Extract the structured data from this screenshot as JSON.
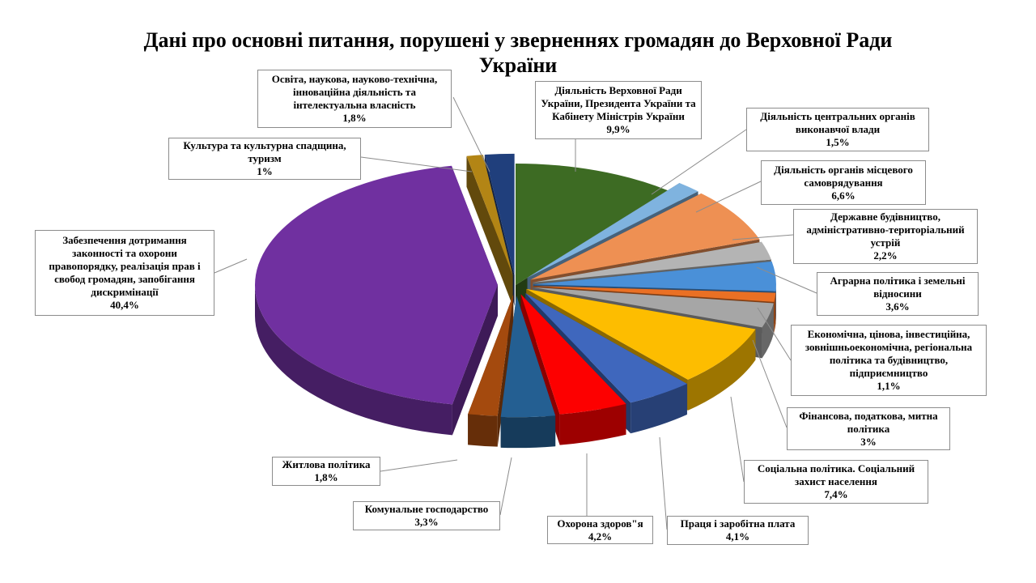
{
  "title": "Дані про основні питання, порушені у зверненнях громадян до Верховної Ради України",
  "chart_data": {
    "type": "pie",
    "style": "3d-exploded",
    "title": "Дані про основні питання, порушені у зверненнях громадян до Верховної Ради України",
    "unit": "%",
    "slices": [
      {
        "label": "Діяльність Верховної Ради України, Президента України та Кабінету Міністрів України",
        "value": 9.9,
        "display": "9,9%",
        "color": "#3d6b23"
      },
      {
        "label": "Діяльність центральних органів виконавчої влади",
        "value": 1.5,
        "display": "1,5%",
        "color": "#7fb3df"
      },
      {
        "label": "Діяльність органів місцевого самоврядування",
        "value": 6.6,
        "display": "6,6%",
        "color": "#ee9053"
      },
      {
        "label": "Державне будівництво, адміністративно-територіальний устрій",
        "value": 2.2,
        "display": "2,2%",
        "color": "#b4b4b4"
      },
      {
        "label": "Аграрна політика і земельні відносини",
        "value": 3.6,
        "display": "3,6%",
        "color": "#4a90d8"
      },
      {
        "label": "Економічна, цінова, інвестиційна, зовнішньоекономічна, регіональна політика та будівництво, підприємництво",
        "value": 1.1,
        "display": "1,1%",
        "color": "#ea7024"
      },
      {
        "label": "Фінансова, податкова, митна політика",
        "value": 3.0,
        "display": "3%",
        "color": "#a6a6a6"
      },
      {
        "label": "Соціальна політика. Соціальний захист населення",
        "value": 7.4,
        "display": "7,4%",
        "color": "#fdbd00"
      },
      {
        "label": "Праця і заробітна плата",
        "value": 4.1,
        "display": "4,1%",
        "color": "#3f67bd"
      },
      {
        "label": "Охорона здоров\"я",
        "value": 4.2,
        "display": "4,2%",
        "color": "#fd0000"
      },
      {
        "label": "Комунальне господарство",
        "value": 3.3,
        "display": "3,3%",
        "color": "#245f92"
      },
      {
        "label": "Житлова політика",
        "value": 1.8,
        "display": "1,8%",
        "color": "#a44a0e"
      },
      {
        "label": "Забезпечення дотримання законності та охорони правопорядку, реалізація прав і свобод громадян, запобігання дискримінації",
        "value": 40.4,
        "display": "40,4%",
        "color": "#7030a0"
      },
      {
        "label": "Культура та культурна спадщина, туризм",
        "value": 1.0,
        "display": "1%",
        "color": "#b38515"
      },
      {
        "label": "Освіта, наукова, науково-технічна, інноваційна діяльність та інтелектуальна власність",
        "value": 1.8,
        "display": "1,8%",
        "color": "#203f7c"
      }
    ]
  },
  "callouts": [
    {
      "lines": [
        "Діяльність Верховної Ради",
        "України, Президента України та",
        "Кабінету Міністрів України",
        "9,9%"
      ]
    },
    {
      "lines": [
        "Діяльність центральних органів",
        "виконавчої влади",
        "1,5%"
      ]
    },
    {
      "lines": [
        "Діяльність органів місцевого",
        "самоврядування",
        "6,6%"
      ]
    },
    {
      "lines": [
        "Державне будівництво,",
        "адміністративно-територіальний",
        "устрій",
        "2,2%"
      ]
    },
    {
      "lines": [
        "Аграрна політика і земельні",
        "відносини",
        "3,6%"
      ]
    },
    {
      "lines": [
        "Економічна, цінова, інвестиційна,",
        "зовнішньоекономічна, регіональна",
        "політика та будівництво,",
        "підприємництво",
        "1,1%"
      ]
    },
    {
      "lines": [
        "Фінансова, податкова, митна",
        "політика",
        "3%"
      ]
    },
    {
      "lines": [
        "Соціальна політика. Соціальний",
        "захист населення",
        "7,4%"
      ]
    },
    {
      "lines": [
        "Праця і заробітна плата",
        "4,1%"
      ]
    },
    {
      "lines": [
        "Охорона здоров\"я",
        "4,2%"
      ]
    },
    {
      "lines": [
        "Комунальне господарство",
        "3,3%"
      ]
    },
    {
      "lines": [
        "Житлова політика",
        "1,8%"
      ]
    },
    {
      "lines": [
        "Забезпечення дотримання",
        "законності та охорони",
        "правопорядку, реалізація прав і",
        "свобод громадян, запобігання",
        "дискримінації",
        "40,4%"
      ]
    },
    {
      "lines": [
        "Культура та культурна спадщина,",
        "туризм",
        "1%"
      ]
    },
    {
      "lines": [
        "Освіта, наукова, науково-технічна,",
        "інноваційна діяльність та",
        "інтелектуальна власність",
        "1,8%"
      ]
    }
  ]
}
